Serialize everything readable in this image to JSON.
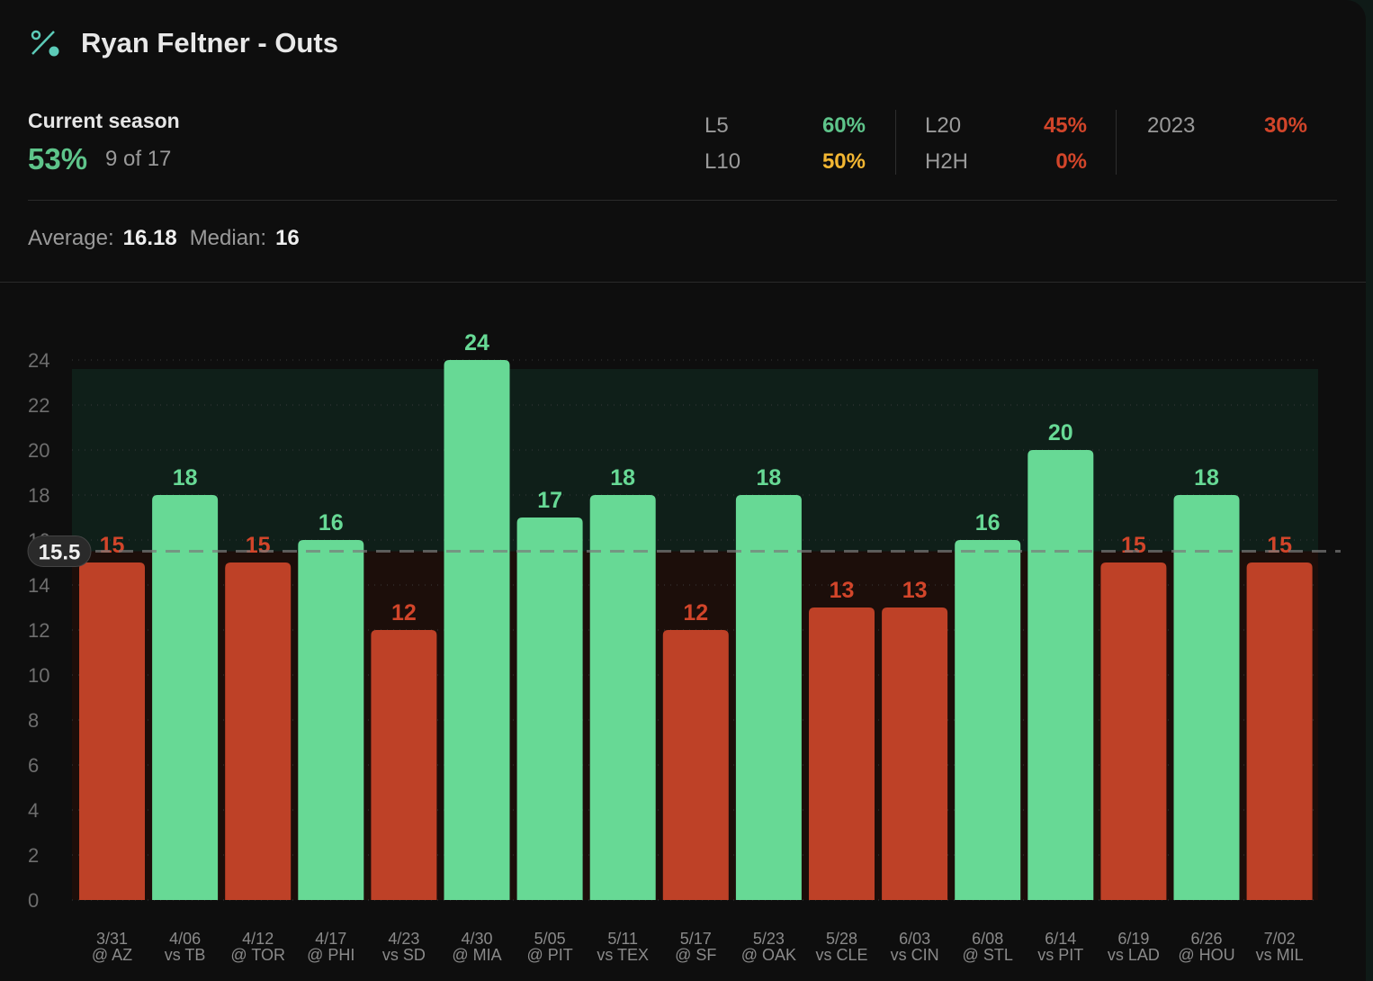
{
  "header": {
    "title": "Ryan Feltner - Outs",
    "icon": "percent-icon"
  },
  "season": {
    "label": "Current season",
    "pct": "53%",
    "count": "9 of 17"
  },
  "stats": [
    {
      "label": "L5",
      "value": "60%",
      "color": "#5ec48a"
    },
    {
      "label": "L10",
      "value": "50%",
      "color": "#f2b632"
    },
    {
      "label": "L20",
      "value": "45%",
      "color": "#d2452a"
    },
    {
      "label": "H2H",
      "value": "0%",
      "color": "#d2452a"
    },
    {
      "label": "2023",
      "value": "30%",
      "color": "#d2452a"
    }
  ],
  "summary": {
    "average_label": "Average:",
    "average": "16.18",
    "median_label": "Median:",
    "median": "16"
  },
  "chart_data": {
    "type": "bar",
    "line": 15.5,
    "line_label": "15.5",
    "ylim": [
      0,
      24
    ],
    "yticks": [
      0,
      2,
      4,
      6,
      8,
      10,
      12,
      14,
      16,
      18,
      20,
      22,
      24
    ],
    "categories": [
      [
        "3/31",
        "@ AZ"
      ],
      [
        "4/06",
        "vs TB"
      ],
      [
        "4/12",
        "@ TOR"
      ],
      [
        "4/17",
        "@ PHI"
      ],
      [
        "4/23",
        "vs SD"
      ],
      [
        "4/30",
        "@ MIA"
      ],
      [
        "5/05",
        "@ PIT"
      ],
      [
        "5/11",
        "vs TEX"
      ],
      [
        "5/17",
        "@ SF"
      ],
      [
        "5/23",
        "@ OAK"
      ],
      [
        "5/28",
        "vs CLE"
      ],
      [
        "6/03",
        "vs CIN"
      ],
      [
        "6/08",
        "@ STL"
      ],
      [
        "6/14",
        "vs PIT"
      ],
      [
        "6/19",
        "vs LAD"
      ],
      [
        "6/26",
        "@ HOU"
      ],
      [
        "7/02",
        "vs MIL"
      ]
    ],
    "values": [
      15,
      18,
      15,
      16,
      12,
      24,
      17,
      18,
      12,
      18,
      13,
      13,
      16,
      20,
      15,
      18,
      15
    ],
    "colors": {
      "over": "#67d995",
      "under": "#be4127",
      "over_label": "#67d995",
      "under_label": "#d2452a"
    }
  }
}
